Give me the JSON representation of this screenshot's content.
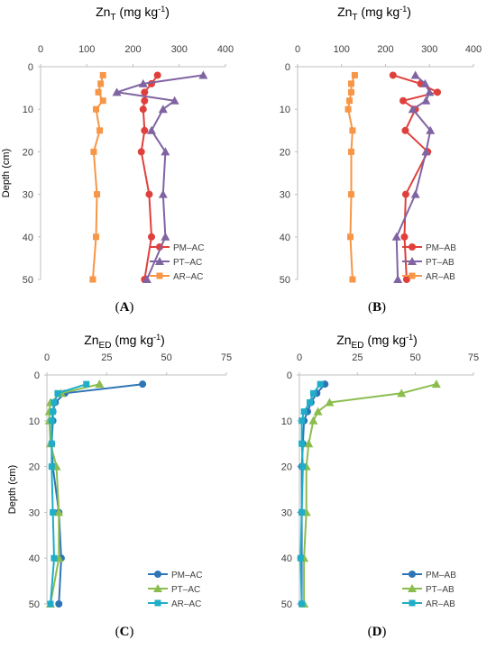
{
  "chart_data": [
    {
      "panel": "A",
      "type": "line",
      "title_main": "Zn",
      "title_sub": "T",
      "title_unit_prefix": " (mg kg",
      "title_unit_sup": "-1",
      "title_unit_suffix": ")",
      "ylabel": "Depth (cm)",
      "xlim": [
        0,
        400
      ],
      "xticks": [
        "0",
        "100",
        "200",
        "300",
        "400"
      ],
      "ylim": [
        0,
        50
      ],
      "yticks": [
        "0",
        "10",
        "20",
        "30",
        "40",
        "50"
      ],
      "series": [
        {
          "name": "PM–AC",
          "color": "#e0403c",
          "marker": "circle",
          "x": [
            253,
            240,
            225,
            225,
            222,
            225,
            218,
            235,
            240,
            225
          ],
          "y": [
            2,
            4,
            6,
            8,
            10,
            15,
            20,
            30,
            40,
            50
          ]
        },
        {
          "name": "PT–AC",
          "color": "#8064a2",
          "marker": "triangle",
          "x": [
            352,
            222,
            165,
            290,
            265,
            240,
            270,
            265,
            270,
            230
          ],
          "y": [
            2,
            4,
            6,
            8,
            10,
            15,
            20,
            30,
            40,
            50
          ]
        },
        {
          "name": "AR–AC",
          "color": "#f79646",
          "marker": "square",
          "x": [
            135,
            130,
            125,
            135,
            120,
            128,
            115,
            122,
            120,
            113
          ],
          "y": [
            2,
            4,
            6,
            8,
            10,
            15,
            20,
            30,
            40,
            50
          ]
        }
      ]
    },
    {
      "panel": "B",
      "type": "line",
      "title_main": "Zn",
      "title_sub": "T",
      "title_unit_prefix": " (mg kg",
      "title_unit_sup": "-1",
      "title_unit_suffix": ")",
      "ylabel": "",
      "xlim": [
        0,
        400
      ],
      "xticks": [
        "0",
        "100",
        "200",
        "300",
        "400"
      ],
      "ylim": [
        0,
        50
      ],
      "yticks": [
        "0",
        "10",
        "20",
        "30",
        "40",
        "50"
      ],
      "series": [
        {
          "name": "PM–AB",
          "color": "#e0403c",
          "marker": "circle",
          "x": [
            217,
            280,
            318,
            240,
            268,
            245,
            296,
            246,
            243,
            248
          ],
          "y": [
            2,
            4,
            6,
            8,
            10,
            15,
            20,
            30,
            40,
            50
          ]
        },
        {
          "name": "PT–AB",
          "color": "#8064a2",
          "marker": "triangle",
          "x": [
            268,
            290,
            300,
            292,
            262,
            302,
            292,
            268,
            225,
            228
          ],
          "y": [
            2,
            4,
            6,
            8,
            10,
            15,
            20,
            30,
            40,
            50
          ]
        },
        {
          "name": "AR–AB",
          "color": "#f79646",
          "marker": "square",
          "x": [
            130,
            122,
            122,
            118,
            115,
            125,
            122,
            122,
            120,
            125
          ],
          "y": [
            2,
            4,
            6,
            8,
            10,
            15,
            20,
            30,
            40,
            50
          ]
        }
      ]
    },
    {
      "panel": "C",
      "type": "line",
      "title_main": "Zn",
      "title_sub": "ED",
      "title_unit_prefix": " (mg kg",
      "title_unit_sup": "-1",
      "title_unit_suffix": ")",
      "ylabel": "Depth (cm)",
      "xlim": [
        0,
        75
      ],
      "xticks": [
        "0",
        "25",
        "50",
        "75"
      ],
      "ylim": [
        0,
        50
      ],
      "yticks": [
        "0",
        "10",
        "20",
        "30",
        "40",
        "50"
      ],
      "series": [
        {
          "name": "PM–AC",
          "color": "#2e75b6",
          "marker": "circle",
          "x": [
            40,
            7.5,
            3.5,
            2.5,
            2.5,
            2,
            2.5,
            5,
            6,
            5
          ],
          "y": [
            2,
            4,
            6,
            8,
            10,
            15,
            20,
            30,
            40,
            50
          ]
        },
        {
          "name": "PT–AC",
          "color": "#8bbd4e",
          "marker": "triangle",
          "x": [
            22,
            6,
            1.5,
            1,
            1,
            1.5,
            4,
            5,
            5,
            1.5
          ],
          "y": [
            2,
            4,
            6,
            8,
            10,
            15,
            20,
            30,
            40,
            50
          ]
        },
        {
          "name": "AR–AC",
          "color": "#1fadc8",
          "marker": "square",
          "x": [
            16.5,
            4.5,
            3,
            2.5,
            2,
            2,
            2,
            2.5,
            3,
            1.5
          ],
          "y": [
            2,
            4,
            6,
            8,
            10,
            15,
            20,
            30,
            40,
            50
          ]
        }
      ]
    },
    {
      "panel": "D",
      "type": "line",
      "title_main": "Zn",
      "title_sub": "ED",
      "title_unit_prefix": " (mg kg",
      "title_unit_sup": "-1",
      "title_unit_suffix": ")",
      "ylabel": "",
      "xlim": [
        0,
        75
      ],
      "xticks": [
        "0",
        "25",
        "50",
        "75"
      ],
      "ylim": [
        0,
        50
      ],
      "yticks": [
        "0",
        "10",
        "20",
        "30",
        "40",
        "50"
      ],
      "series": [
        {
          "name": "PM–AB",
          "color": "#2e75b6",
          "marker": "circle",
          "x": [
            11,
            7.5,
            5,
            3.5,
            2,
            1.5,
            1,
            1,
            1,
            1
          ],
          "y": [
            2,
            4,
            6,
            8,
            10,
            15,
            20,
            30,
            40,
            50
          ]
        },
        {
          "name": "PT–AB",
          "color": "#8bbd4e",
          "marker": "triangle",
          "x": [
            59,
            44,
            13,
            8,
            6,
            4,
            3,
            3,
            2,
            2
          ],
          "y": [
            2,
            4,
            6,
            8,
            10,
            15,
            20,
            30,
            40,
            50
          ]
        },
        {
          "name": "AR–AB",
          "color": "#1fadc8",
          "marker": "square",
          "x": [
            9,
            6,
            4.5,
            2,
            1,
            1,
            1.5,
            1,
            0.5,
            1
          ],
          "y": [
            2,
            4,
            6,
            8,
            10,
            15,
            20,
            30,
            40,
            50
          ]
        }
      ]
    }
  ],
  "panel_labels": [
    "(A)",
    "(B)",
    "(C)",
    "(D)"
  ]
}
